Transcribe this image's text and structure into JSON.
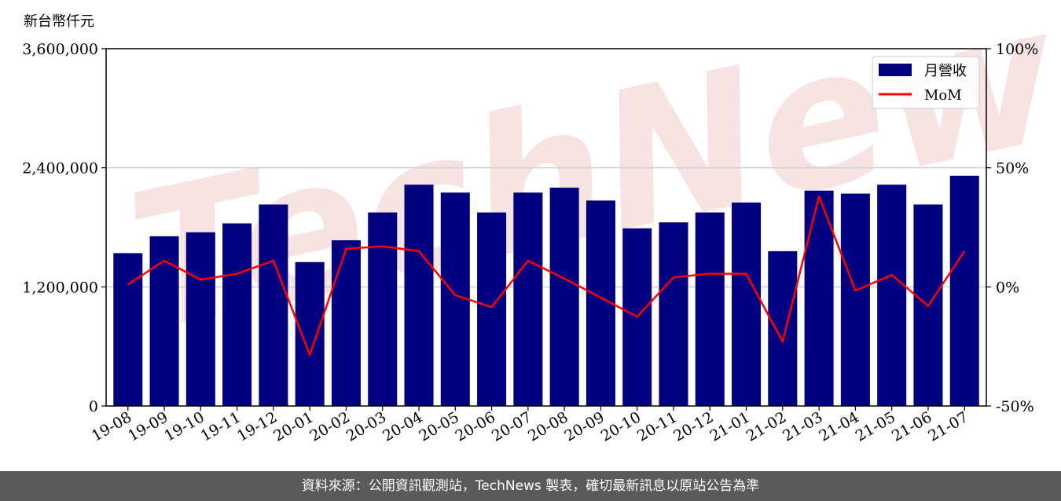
{
  "unit_label": "新台幣仟元",
  "footer": {
    "source_text": "資料來源：公開資訊觀測站，TechNews 製表，確切最新訊息以原站公告為準"
  },
  "watermark": "TechNews",
  "colors": {
    "bar": "#000080",
    "line": "#ff0000",
    "grid": "#d0d0d0",
    "watermark": "#f6dada"
  },
  "chart_data": {
    "type": "bar",
    "categories": [
      "19-08",
      "19-09",
      "19-10",
      "19-11",
      "19-12",
      "20-01",
      "20-02",
      "20-03",
      "20-04",
      "20-05",
      "20-06",
      "20-07",
      "20-08",
      "20-09",
      "20-10",
      "20-11",
      "20-12",
      "21-01",
      "21-02",
      "21-03",
      "21-04",
      "21-05",
      "21-06",
      "21-07"
    ],
    "series": [
      {
        "name": "月營收",
        "type": "bar",
        "axis": "left",
        "values": [
          1540000,
          1710000,
          1750000,
          1840000,
          2030000,
          1450000,
          1670000,
          1950000,
          2230000,
          2150000,
          1950000,
          2150000,
          2200000,
          2070000,
          1790000,
          1850000,
          1950000,
          2050000,
          1560000,
          2170000,
          2140000,
          2230000,
          2030000,
          2320000
        ]
      },
      {
        "name": "MoM",
        "type": "line",
        "axis": "right",
        "values": [
          1,
          11,
          3,
          5.5,
          11,
          -28.5,
          16,
          17,
          15,
          -3.5,
          -8.5,
          11,
          3.5,
          -4.5,
          -12.5,
          4,
          5.5,
          5.5,
          -23,
          38,
          -1.5,
          5,
          -8,
          15
        ]
      }
    ],
    "y_left": {
      "ylim": [
        0,
        3600000
      ],
      "ticks": [
        "0",
        "1,200,000",
        "2,400,000",
        "3,600,000"
      ],
      "tick_values": [
        0,
        1200000,
        2400000,
        3600000
      ]
    },
    "y_right": {
      "ylim": [
        -50,
        100
      ],
      "ticks": [
        "-50%",
        "0%",
        "50%",
        "100%"
      ],
      "tick_values": [
        -50,
        0,
        50,
        100
      ]
    },
    "grid": "horizontal",
    "legend_position": "top-right"
  }
}
